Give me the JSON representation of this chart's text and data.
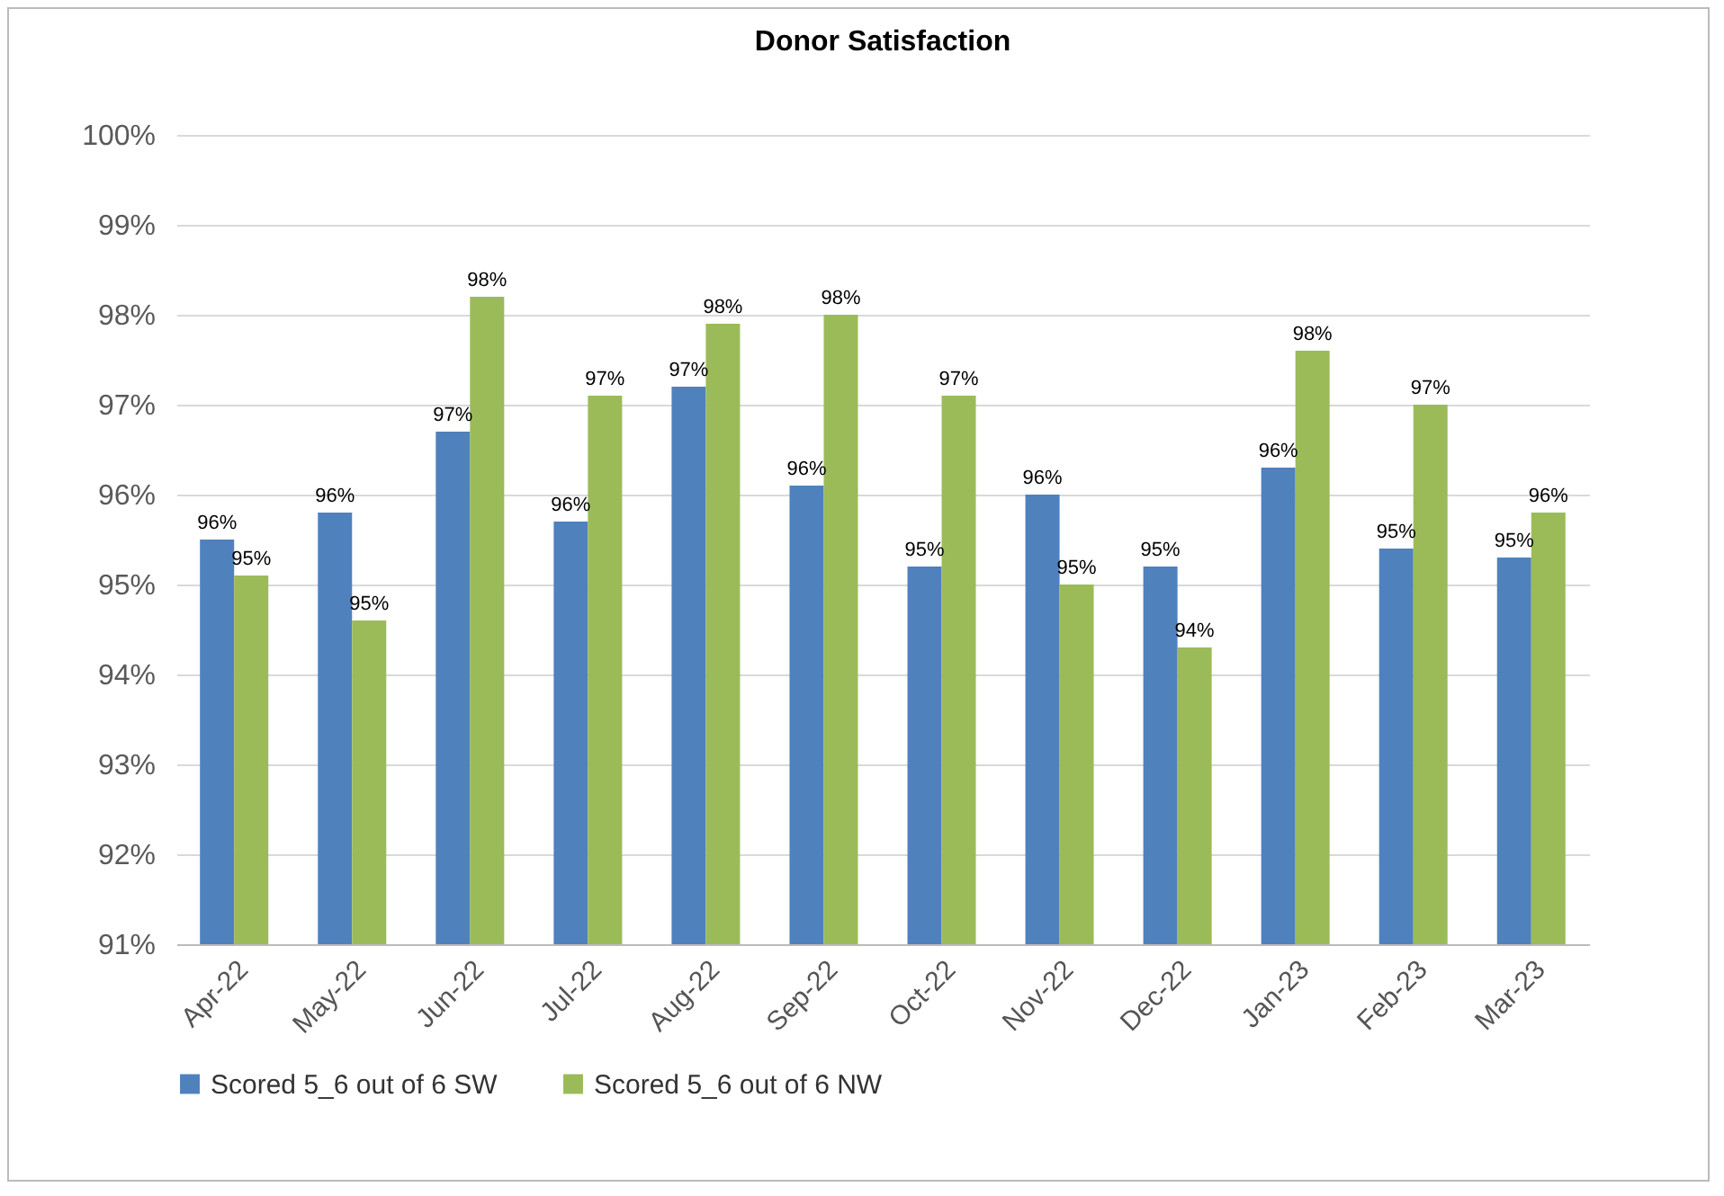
{
  "chart_data": {
    "type": "bar",
    "title": "Donor Satisfaction",
    "categories": [
      "Apr-22",
      "May-22",
      "Jun-22",
      "Jul-22",
      "Aug-22",
      "Sep-22",
      "Oct-22",
      "Nov-22",
      "Dec-22",
      "Jan-23",
      "Feb-23",
      "Mar-23"
    ],
    "series": [
      {
        "name": "Scored 5_6 out of 6  SW",
        "color": "#4f81bd",
        "values": [
          95.5,
          95.8,
          96.7,
          95.7,
          97.2,
          96.1,
          95.2,
          96.0,
          95.2,
          96.3,
          95.4,
          95.3
        ],
        "value_labels": [
          "96%",
          "96%",
          "97%",
          "96%",
          "97%",
          "96%",
          "95%",
          "96%",
          "95%",
          "96%",
          "95%",
          "95%"
        ]
      },
      {
        "name": "Scored 5_6 out of 6 NW",
        "color": "#9bbb59",
        "values": [
          95.1,
          94.6,
          98.2,
          97.1,
          97.9,
          98.0,
          97.1,
          95.0,
          94.3,
          97.6,
          97.0,
          95.8
        ],
        "value_labels": [
          "95%",
          "95%",
          "98%",
          "97%",
          "98%",
          "98%",
          "97%",
          "95%",
          "94%",
          "98%",
          "97%",
          "96%"
        ]
      }
    ],
    "ylim": [
      91,
      100
    ],
    "yticks": [
      {
        "value": 91,
        "label": "91%"
      },
      {
        "value": 92,
        "label": "92%"
      },
      {
        "value": 93,
        "label": "93%"
      },
      {
        "value": 94,
        "label": "94%"
      },
      {
        "value": 95,
        "label": "95%"
      },
      {
        "value": 96,
        "label": "96%"
      },
      {
        "value": 97,
        "label": "97%"
      },
      {
        "value": 98,
        "label": "98%"
      },
      {
        "value": 99,
        "label": "99%"
      },
      {
        "value": 100,
        "label": "100%"
      }
    ],
    "grid": "y",
    "legend": "bottom"
  }
}
